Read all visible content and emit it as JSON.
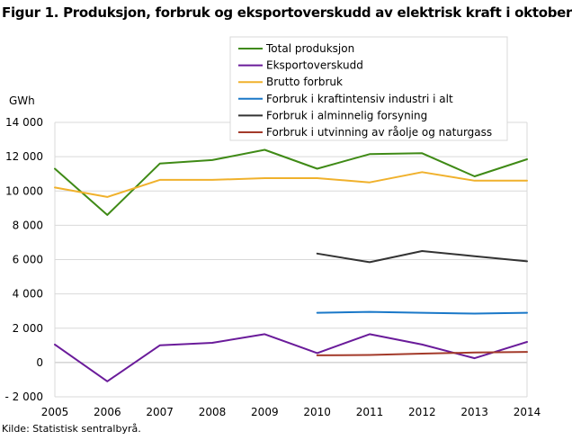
{
  "title": "Figur 1. Produksjon, forbruk og eksportoverskudd av elektrisk kraft i oktober",
  "source": "Kilde: Statistisk sentralbyrå.",
  "chart_data": {
    "type": "line",
    "ylabel": "GWh",
    "ylim": [
      -2000,
      14000
    ],
    "yticks": [
      -2000,
      0,
      2000,
      4000,
      6000,
      8000,
      10000,
      12000,
      14000
    ],
    "ytick_labels": [
      "- 2 000",
      "0",
      "2 000",
      "4 000",
      "6 000",
      "8 000",
      "10 000",
      "12 000",
      "14 000"
    ],
    "x": [
      "2005",
      "2006",
      "2007",
      "2008",
      "2009",
      "2010",
      "2011",
      "2012",
      "2013",
      "2014"
    ],
    "grid": "horizontal",
    "legend_position": "top-right",
    "series": [
      {
        "name": "Total produksjon",
        "color": "#3f8a16",
        "values": [
          11300,
          8600,
          11600,
          11800,
          12400,
          11300,
          12150,
          12200,
          10850,
          11850
        ]
      },
      {
        "name": "Eksportoverskudd",
        "color": "#6a1b9a",
        "values": [
          1050,
          -1100,
          1000,
          1150,
          1650,
          550,
          1650,
          1050,
          250,
          1200
        ]
      },
      {
        "name": "Brutto forbruk",
        "color": "#f0b12c",
        "values": [
          10200,
          9650,
          10650,
          10650,
          10750,
          10750,
          10500,
          11100,
          10600,
          10600
        ]
      },
      {
        "name": "Forbruk i kraftintensiv industri i alt",
        "color": "#1a78c8",
        "values": [
          null,
          null,
          null,
          null,
          null,
          2900,
          2950,
          2900,
          2850,
          2900
        ]
      },
      {
        "name": "Forbruk i alminnelig forsyning",
        "color": "#333333",
        "values": [
          null,
          null,
          null,
          null,
          null,
          6350,
          5850,
          6500,
          6200,
          5900
        ]
      },
      {
        "name": "Forbruk i utvinning av råolje og naturgass",
        "color": "#a33a2a",
        "values": [
          null,
          null,
          null,
          null,
          null,
          420,
          440,
          520,
          580,
          620
        ]
      }
    ]
  }
}
